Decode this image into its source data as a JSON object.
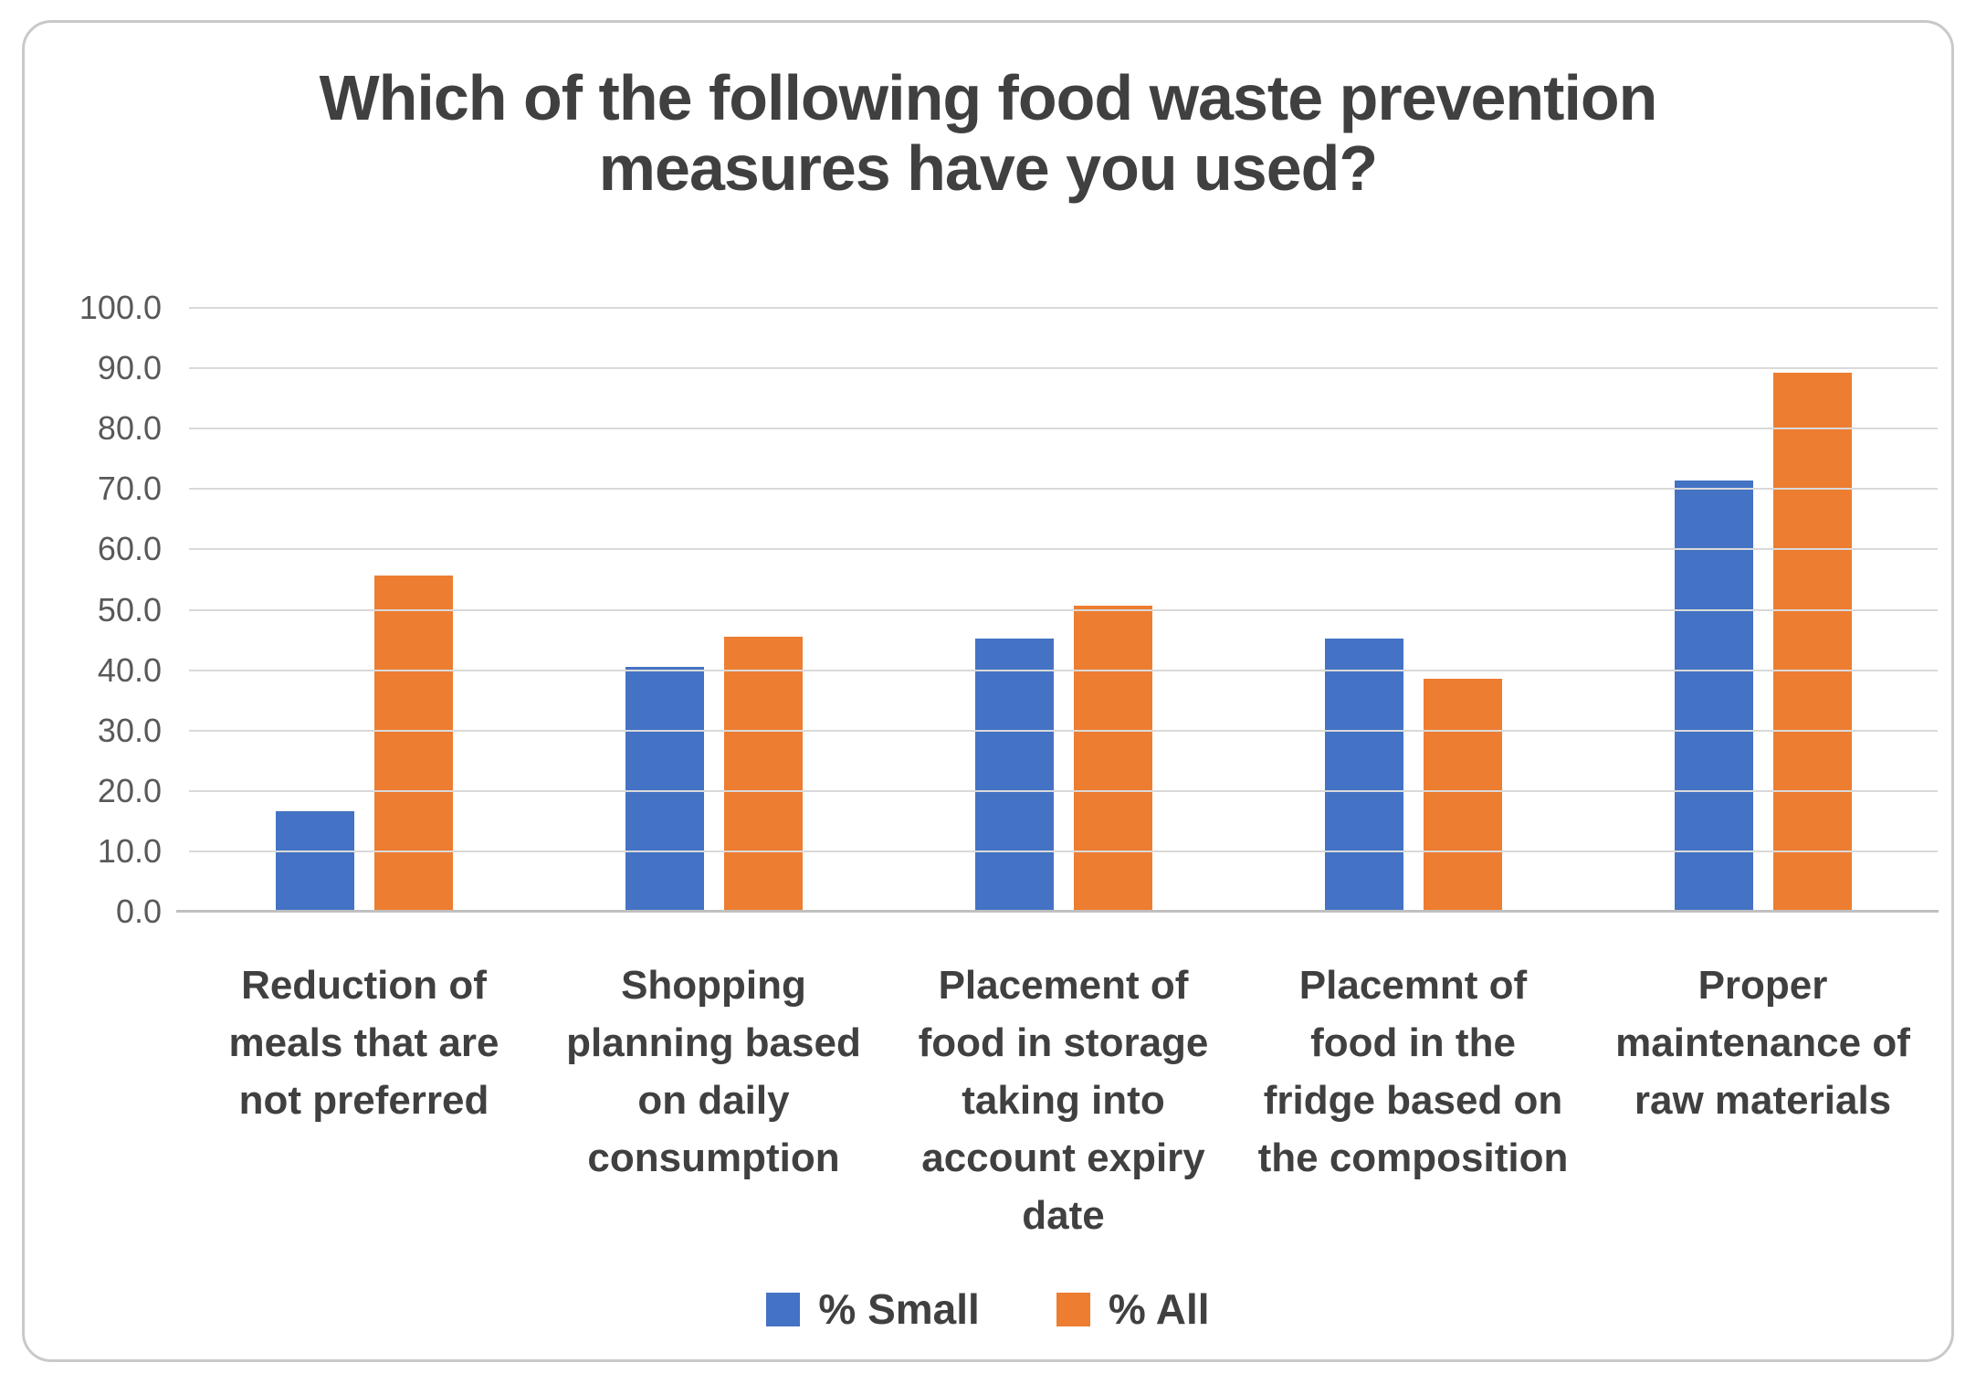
{
  "header": {
    "title_display": "Which of the following food waste prevention\nmeasures have you used?"
  },
  "chart_data": {
    "type": "bar",
    "title": "Which of the following food waste prevention measures have you used?",
    "categories": [
      "Reduction of meals that are not preferred",
      "Shopping planning based on daily consumption",
      "Placement of food in storage taking into account expiry date",
      "Placemnt of food in the fridge based on the composition",
      "Proper maintenance of raw materials"
    ],
    "categories_display": [
      "Reduction of\nmeals that are\nnot preferred",
      "Shopping\nplanning based\non daily\nconsumption",
      "Placement of\nfood in storage\ntaking into\naccount expiry\ndate",
      "Placemnt of\nfood in the\nfridge based on\nthe composition",
      "Proper\nmaintenance of\nraw materials"
    ],
    "series": [
      {
        "name": "% Small",
        "color": "#4472C4",
        "values": [
          16.7,
          40.5,
          45.2,
          45.2,
          71.4
        ]
      },
      {
        "name": "% All",
        "color": "#ED7D31",
        "values": [
          55.6,
          45.5,
          50.7,
          38.6,
          89.2
        ]
      }
    ],
    "ylim": [
      0,
      100
    ],
    "ytick_step": 10,
    "ytick_decimals": 1,
    "grid": true,
    "legend_position": "bottom"
  },
  "colors": {
    "title": "#404040",
    "axis_labels": "#595959",
    "category_labels": "#404040",
    "gridline": "#D9D9D9",
    "axis_line": "#C0C0C0",
    "border": "#C9C9C9",
    "background": "#FFFFFF"
  }
}
